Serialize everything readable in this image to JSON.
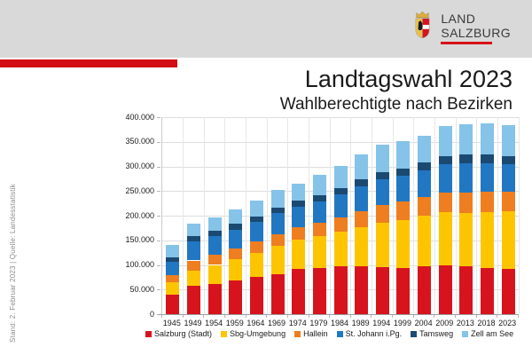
{
  "header": {
    "band_color": "#d9d9d9",
    "logo": {
      "line1": "LAND",
      "line2": "SALZBURG",
      "text_color": "#3a3a3a",
      "underline_color": "#d61118",
      "coat_colors": {
        "gold": "#dfae3c",
        "red": "#d7141d",
        "white": "#ffffff",
        "lion": "#1a1a1a"
      }
    }
  },
  "slide": {
    "title": "Landtagswahl 2023",
    "subtitle": "Wahlberechtigte nach Bezirken",
    "footnote": "Stand: 2. Februar 2023 | Quelle: Landesstatistik",
    "accent_color": "#d20d13"
  },
  "chart_data": {
    "type": "bar",
    "stacked": true,
    "title": "Wahlberechtigte nach Bezirken",
    "xlabel": "",
    "ylabel": "",
    "ylim": [
      0,
      400000
    ],
    "ytick_step": 50000,
    "ytick_labels": [
      "0",
      "50.000",
      "100.000",
      "150.000",
      "200.000",
      "250.000",
      "300.000",
      "350.000",
      "400.000"
    ],
    "grid": true,
    "legend_position": "bottom",
    "categories": [
      "1945",
      "1949",
      "1954",
      "1959",
      "1964",
      "1969",
      "1974",
      "1979",
      "1984",
      "1989",
      "1994",
      "1999",
      "2004",
      "2009",
      "2013",
      "2018",
      "2023"
    ],
    "series": [
      {
        "name": "Salzburg (Stadt)",
        "color": "#d7141d",
        "values": [
          40000,
          57000,
          61000,
          68000,
          76000,
          81000,
          92000,
          94000,
          97000,
          98000,
          96000,
          94000,
          97000,
          99000,
          97000,
          94000,
          91000
        ]
      },
      {
        "name": "Sbg-Umgebung",
        "color": "#fdc500",
        "values": [
          25000,
          32000,
          39000,
          44000,
          49000,
          57000,
          59000,
          64000,
          71000,
          78000,
          89000,
          97000,
          103000,
          109000,
          108000,
          114000,
          118000
        ]
      },
      {
        "name": "Hallein",
        "color": "#ee7e20",
        "values": [
          15000,
          20000,
          21000,
          22000,
          23000,
          25000,
          25000,
          27000,
          29000,
          33000,
          36000,
          37000,
          38000,
          39000,
          42000,
          41000,
          40000
        ]
      },
      {
        "name": "St. Johann i.Pg.",
        "color": "#2277c3",
        "values": [
          26000,
          38000,
          37000,
          38000,
          39000,
          42000,
          42000,
          44000,
          46000,
          51000,
          53000,
          53000,
          54000,
          57000,
          59000,
          57000,
          55000
        ]
      },
      {
        "name": "Tamsweg",
        "color": "#1a4a72",
        "values": [
          10000,
          11000,
          11000,
          11000,
          11000,
          11000,
          12000,
          12000,
          13000,
          14000,
          15000,
          15000,
          16000,
          16000,
          18000,
          18000,
          17000
        ]
      },
      {
        "name": "Zell am See",
        "color": "#85c3e9",
        "values": [
          25000,
          26000,
          28000,
          30000,
          32000,
          36000,
          34000,
          41000,
          45000,
          50000,
          55000,
          55000,
          54000,
          62000,
          62000,
          63000,
          63000
        ]
      }
    ]
  },
  "theme": {
    "hgrid_color": "#dedede",
    "vgrid_color": "#e7e7e7",
    "axis_color": "#9e9e9e",
    "text_dark": "#1a1a1a",
    "text_gray": "#8c8c8c"
  }
}
